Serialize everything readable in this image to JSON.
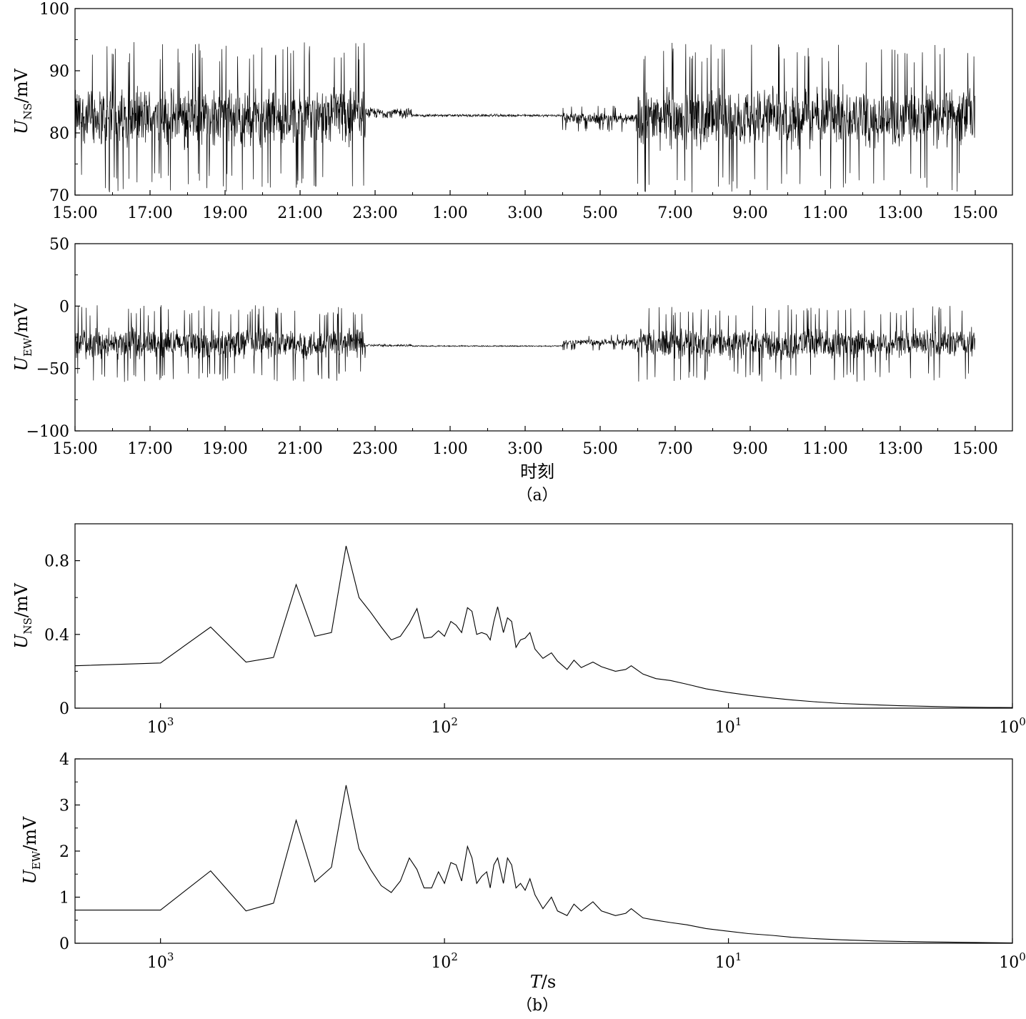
{
  "captions": {
    "a": "（a）",
    "b": "（b）"
  },
  "chart_data": [
    {
      "type": "line",
      "panel": "a-top",
      "ylabel": {
        "main": "U",
        "sub": "NS",
        "unit": "/mV"
      },
      "xlabel": "",
      "ylim": [
        70,
        100
      ],
      "yticks": [
        "70",
        "80",
        "90",
        "100"
      ],
      "xticks": [
        "15:00",
        "17:00",
        "19:00",
        "21:00",
        "23:00",
        "1:00",
        "3:00",
        "5:00",
        "7:00",
        "9:00",
        "11:00",
        "13:00",
        "15:00"
      ],
      "xrange_hours": [
        0,
        24
      ],
      "segments": [
        {
          "from": "15:00",
          "to": "22:45",
          "mean": 82.5,
          "spread": 5.5,
          "spikes": 13
        },
        {
          "from": "22:45",
          "to": "0:00",
          "mean": 83.2,
          "spread": 1.0,
          "spikes": 0
        },
        {
          "from": "0:00",
          "to": "4:00",
          "mean": 82.8,
          "spread": 0.25,
          "spikes": 0
        },
        {
          "from": "4:00",
          "to": "6:00",
          "mean": 82.3,
          "spread": 1.0,
          "spikes": 3
        },
        {
          "from": "6:00",
          "to": "15:00",
          "mean": 82.5,
          "spread": 5.5,
          "spikes": 13
        }
      ]
    },
    {
      "type": "line",
      "panel": "a-bottom",
      "ylabel": {
        "main": "U",
        "sub": "EW",
        "unit": "/mV"
      },
      "xlabel": "时刻",
      "ylim": [
        -100,
        50
      ],
      "yticks": [
        "−100",
        "−50",
        "0",
        "50"
      ],
      "xticks": [
        "15:00",
        "17:00",
        "19:00",
        "21:00",
        "23:00",
        "1:00",
        "3:00",
        "5:00",
        "7:00",
        "9:00",
        "11:00",
        "13:00",
        "15:00"
      ],
      "xrange_hours": [
        0,
        24
      ],
      "segments": [
        {
          "from": "15:00",
          "to": "22:45",
          "mean": -30,
          "spread": 14,
          "spikes": 13
        },
        {
          "from": "22:45",
          "to": "0:00",
          "mean": -31.5,
          "spread": 1.2,
          "spikes": 0
        },
        {
          "from": "0:00",
          "to": "4:00",
          "mean": -32,
          "spread": 0.6,
          "spikes": 0
        },
        {
          "from": "4:00",
          "to": "6:00",
          "mean": -29,
          "spread": 3,
          "spikes": 3
        },
        {
          "from": "6:00",
          "to": "15:00",
          "mean": -30,
          "spread": 14,
          "spikes": 13
        }
      ]
    },
    {
      "type": "line",
      "panel": "b-top",
      "ylabel": {
        "main": "U",
        "sub": "NS",
        "unit": "/mV"
      },
      "xlabel": "",
      "xscale": "log-reversed",
      "xlim": [
        2000,
        1
      ],
      "ylim": [
        0,
        1.0
      ],
      "yticks": [
        {
          "value": 0,
          "label": "0"
        },
        {
          "value": 0.4,
          "label": "0.4"
        },
        {
          "value": 0.8,
          "label": "0.8"
        }
      ],
      "xticks": [
        {
          "value": 1000,
          "base": "10",
          "exp": "3"
        },
        {
          "value": 100,
          "base": "10",
          "exp": "2"
        },
        {
          "value": 10,
          "base": "10",
          "exp": "1"
        },
        {
          "value": 1,
          "base": "10",
          "exp": "0"
        }
      ],
      "points": [
        [
          2000,
          0.23
        ],
        [
          1000,
          0.245
        ],
        [
          666,
          0.44
        ],
        [
          500,
          0.25
        ],
        [
          400,
          0.275
        ],
        [
          333,
          0.67
        ],
        [
          286,
          0.39
        ],
        [
          250,
          0.41
        ],
        [
          222,
          0.88
        ],
        [
          200,
          0.6
        ],
        [
          182,
          0.52
        ],
        [
          167,
          0.44
        ],
        [
          154,
          0.37
        ],
        [
          143,
          0.39
        ],
        [
          133,
          0.46
        ],
        [
          125,
          0.54
        ],
        [
          118,
          0.38
        ],
        [
          111,
          0.385
        ],
        [
          105,
          0.42
        ],
        [
          100,
          0.39
        ],
        [
          95,
          0.47
        ],
        [
          91,
          0.45
        ],
        [
          87,
          0.41
        ],
        [
          83,
          0.545
        ],
        [
          80,
          0.525
        ],
        [
          77,
          0.4
        ],
        [
          74,
          0.41
        ],
        [
          71,
          0.4
        ],
        [
          69,
          0.37
        ],
        [
          67,
          0.47
        ],
        [
          65,
          0.55
        ],
        [
          62,
          0.41
        ],
        [
          60,
          0.49
        ],
        [
          58,
          0.47
        ],
        [
          56,
          0.33
        ],
        [
          54,
          0.37
        ],
        [
          52,
          0.38
        ],
        [
          50,
          0.41
        ],
        [
          48,
          0.32
        ],
        [
          45,
          0.27
        ],
        [
          42,
          0.3
        ],
        [
          40,
          0.255
        ],
        [
          37,
          0.21
        ],
        [
          35,
          0.26
        ],
        [
          33,
          0.22
        ],
        [
          30,
          0.25
        ],
        [
          28,
          0.225
        ],
        [
          25,
          0.2
        ],
        [
          23,
          0.21
        ],
        [
          22,
          0.23
        ],
        [
          20,
          0.185
        ],
        [
          18,
          0.16
        ],
        [
          16,
          0.15
        ],
        [
          14,
          0.13
        ],
        [
          12,
          0.105
        ],
        [
          10,
          0.085
        ],
        [
          8.5,
          0.07
        ],
        [
          7,
          0.055
        ],
        [
          6,
          0.045
        ],
        [
          5,
          0.035
        ],
        [
          4,
          0.025
        ],
        [
          3,
          0.018
        ],
        [
          2.5,
          0.013
        ],
        [
          2,
          0.01
        ],
        [
          1.5,
          0.006
        ],
        [
          1.2,
          0.004
        ],
        [
          1,
          0.003
        ]
      ]
    },
    {
      "type": "line",
      "panel": "b-bottom",
      "ylabel": {
        "main": "U",
        "sub": "EW",
        "unit": "/mV"
      },
      "xlabel": {
        "main": "T",
        "unit": "/s"
      },
      "xscale": "log-reversed",
      "xlim": [
        2000,
        1
      ],
      "ylim": [
        0,
        4
      ],
      "yticks": [
        {
          "value": 0,
          "label": "0"
        },
        {
          "value": 1,
          "label": "1"
        },
        {
          "value": 2,
          "label": "2"
        },
        {
          "value": 3,
          "label": "3"
        },
        {
          "value": 4,
          "label": "4"
        }
      ],
      "xticks": [
        {
          "value": 1000,
          "base": "10",
          "exp": "3"
        },
        {
          "value": 100,
          "base": "10",
          "exp": "2"
        },
        {
          "value": 10,
          "base": "10",
          "exp": "1"
        },
        {
          "value": 1,
          "base": "10",
          "exp": "0"
        }
      ],
      "points": [
        [
          2000,
          0.72
        ],
        [
          1000,
          0.72
        ],
        [
          666,
          1.57
        ],
        [
          500,
          0.7
        ],
        [
          400,
          0.87
        ],
        [
          333,
          2.67
        ],
        [
          286,
          1.33
        ],
        [
          250,
          1.65
        ],
        [
          222,
          3.43
        ],
        [
          200,
          2.05
        ],
        [
          182,
          1.6
        ],
        [
          167,
          1.25
        ],
        [
          154,
          1.1
        ],
        [
          143,
          1.35
        ],
        [
          133,
          1.85
        ],
        [
          125,
          1.6
        ],
        [
          118,
          1.2
        ],
        [
          111,
          1.2
        ],
        [
          105,
          1.55
        ],
        [
          100,
          1.3
        ],
        [
          95,
          1.75
        ],
        [
          91,
          1.7
        ],
        [
          87,
          1.35
        ],
        [
          83,
          2.1
        ],
        [
          80,
          1.85
        ],
        [
          77,
          1.3
        ],
        [
          74,
          1.45
        ],
        [
          71,
          1.55
        ],
        [
          69,
          1.2
        ],
        [
          67,
          1.7
        ],
        [
          65,
          1.85
        ],
        [
          62,
          1.3
        ],
        [
          60,
          1.85
        ],
        [
          58,
          1.7
        ],
        [
          56,
          1.2
        ],
        [
          54,
          1.3
        ],
        [
          52,
          1.15
        ],
        [
          50,
          1.4
        ],
        [
          48,
          1.05
        ],
        [
          45,
          0.75
        ],
        [
          42,
          1.0
        ],
        [
          40,
          0.7
        ],
        [
          37,
          0.6
        ],
        [
          35,
          0.85
        ],
        [
          33,
          0.7
        ],
        [
          30,
          0.9
        ],
        [
          28,
          0.7
        ],
        [
          25,
          0.6
        ],
        [
          23,
          0.65
        ],
        [
          22,
          0.75
        ],
        [
          20,
          0.55
        ],
        [
          18,
          0.5
        ],
        [
          16,
          0.45
        ],
        [
          14,
          0.4
        ],
        [
          12,
          0.32
        ],
        [
          10,
          0.26
        ],
        [
          8.5,
          0.21
        ],
        [
          7,
          0.17
        ],
        [
          6,
          0.13
        ],
        [
          5,
          0.1
        ],
        [
          4,
          0.075
        ],
        [
          3,
          0.05
        ],
        [
          2.5,
          0.04
        ],
        [
          2,
          0.03
        ],
        [
          1.5,
          0.02
        ],
        [
          1.2,
          0.012
        ],
        [
          1,
          0.008
        ]
      ]
    }
  ]
}
